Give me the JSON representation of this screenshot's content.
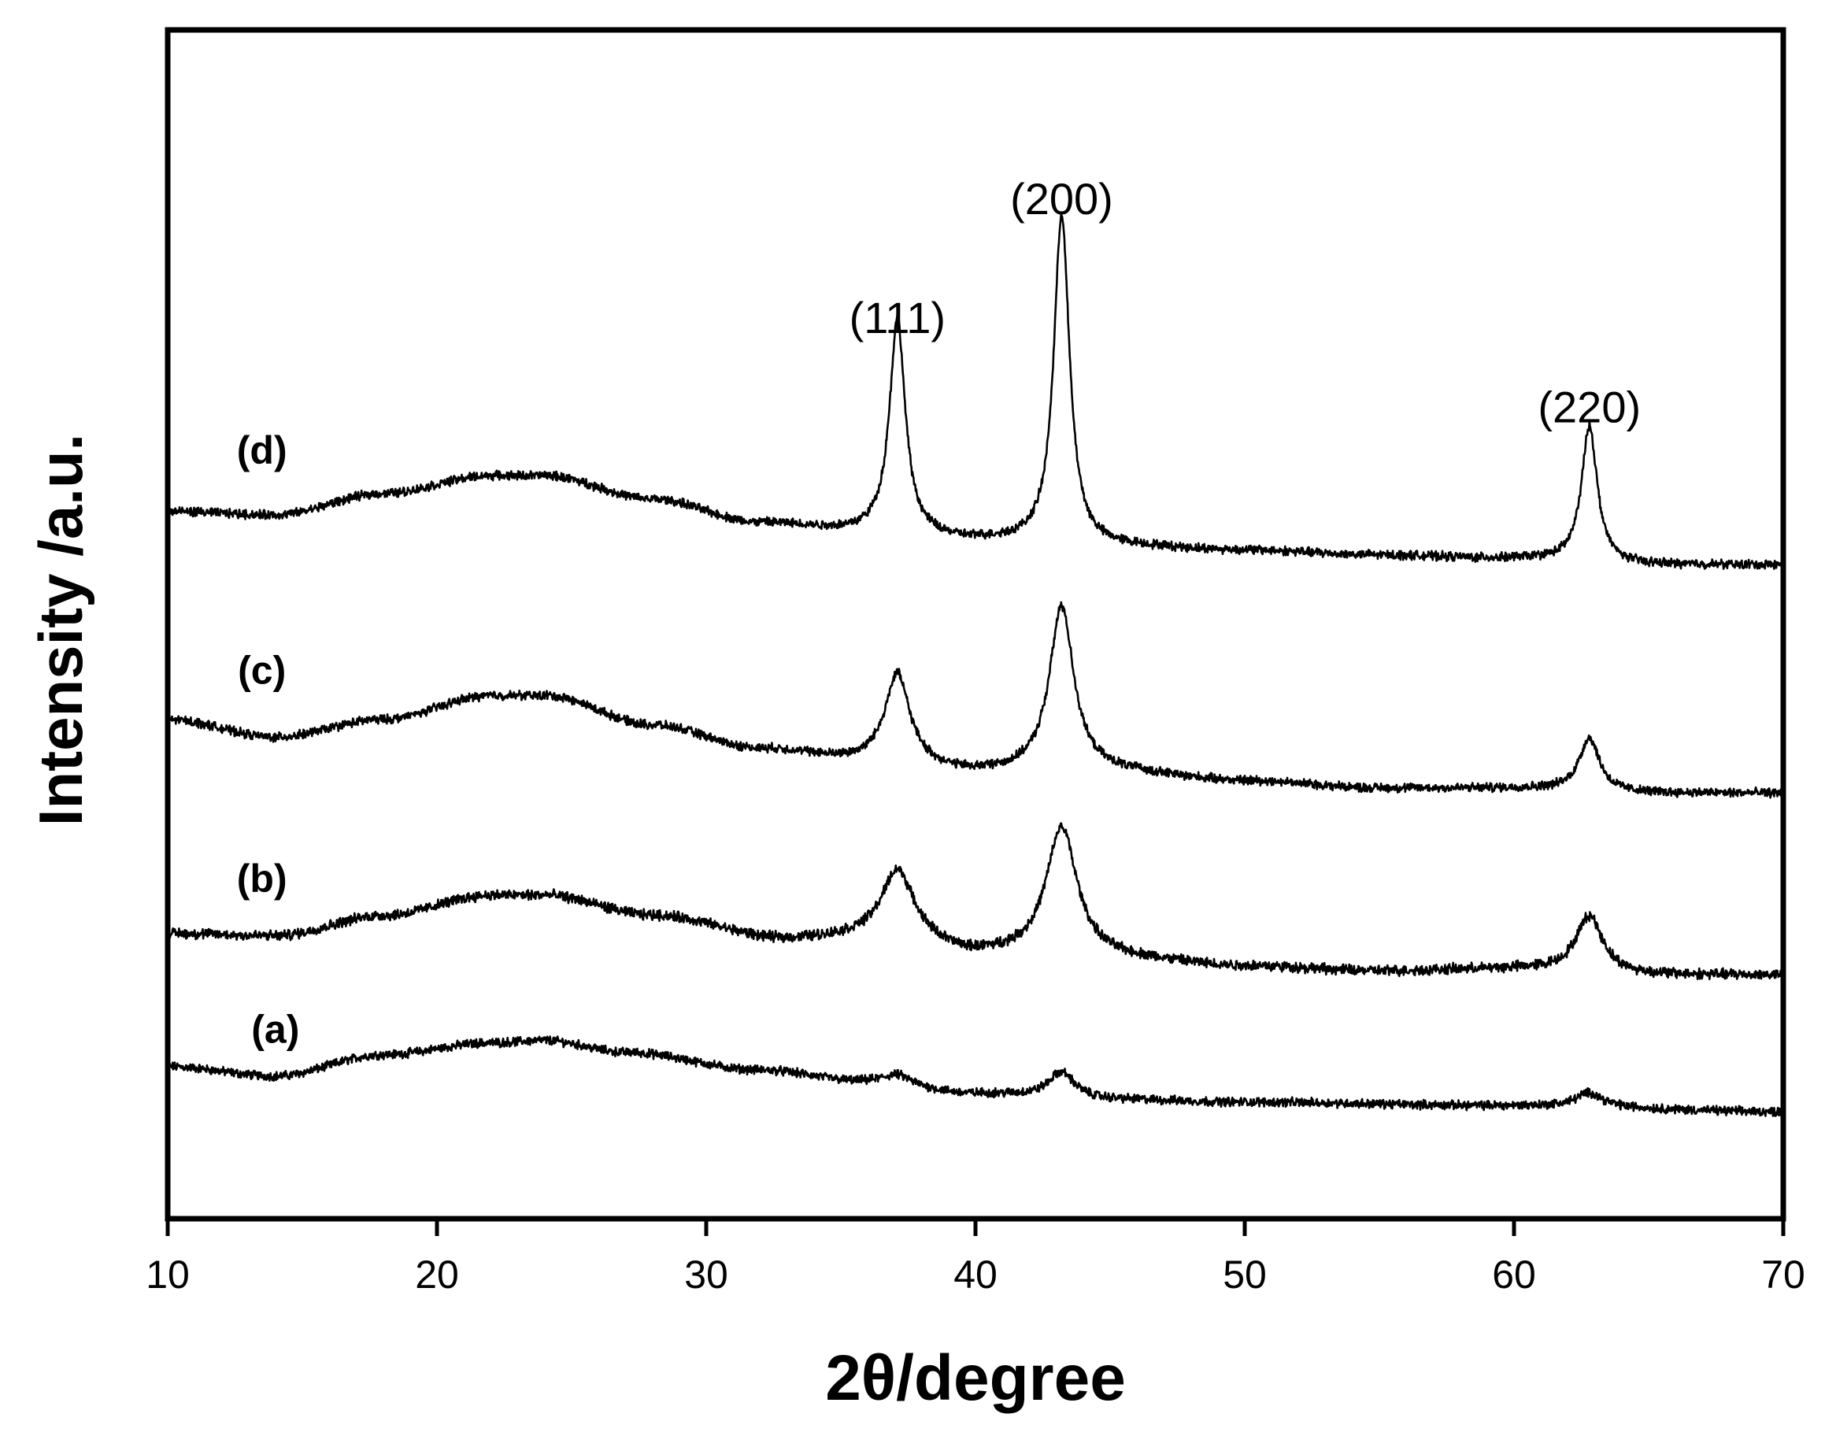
{
  "chart_data": {
    "type": "line",
    "title": "",
    "xlabel": "2θ/degree",
    "ylabel": "Intensity /a.u.",
    "xlim": [
      10,
      70
    ],
    "ylim": [
      0,
      10
    ],
    "x_ticks": [
      10,
      20,
      30,
      40,
      50,
      60,
      70
    ],
    "y_ticks": [],
    "grid": false,
    "legend": "none",
    "line_color": "#000000",
    "peak_centers": [
      37.1,
      43.2,
      62.8
    ],
    "annotations": [
      {
        "text": "(111)",
        "x": 37.1,
        "y": 7.45
      },
      {
        "text": "(200)",
        "x": 43.2,
        "y": 8.45
      },
      {
        "text": "(220)",
        "x": 62.8,
        "y": 6.7
      }
    ],
    "series": [
      {
        "name": "(a)",
        "label_at": {
          "x": 14.0,
          "y": 1.48
        },
        "baseline": [
          [
            10,
            1.28
          ],
          [
            14,
            1.2
          ],
          [
            18,
            1.38
          ],
          [
            22,
            1.48
          ],
          [
            24,
            1.5
          ],
          [
            27,
            1.4
          ],
          [
            32,
            1.25
          ],
          [
            36,
            1.15
          ],
          [
            40,
            1.05
          ],
          [
            45,
            1.0
          ],
          [
            50,
            0.98
          ],
          [
            60,
            0.95
          ],
          [
            70,
            0.9
          ]
        ],
        "peaks": [
          {
            "center": 37.1,
            "height": 0.08,
            "width": 0.6
          },
          {
            "center": 43.2,
            "height": 0.22,
            "width": 0.6
          },
          {
            "center": 62.8,
            "height": 0.12,
            "width": 0.6
          }
        ],
        "noise": 0.03
      },
      {
        "name": "(b)",
        "label_at": {
          "x": 13.5,
          "y": 2.75
        },
        "baseline": [
          [
            10,
            2.4
          ],
          [
            14,
            2.38
          ],
          [
            18,
            2.55
          ],
          [
            22,
            2.72
          ],
          [
            24,
            2.72
          ],
          [
            28,
            2.55
          ],
          [
            33,
            2.35
          ],
          [
            37,
            2.38
          ],
          [
            40,
            2.22
          ],
          [
            45,
            2.18
          ],
          [
            50,
            2.12
          ],
          [
            55,
            2.08
          ],
          [
            60,
            2.1
          ],
          [
            65,
            2.05
          ],
          [
            70,
            2.05
          ]
        ],
        "peaks": [
          {
            "center": 37.1,
            "height": 0.55,
            "width": 0.7
          },
          {
            "center": 43.2,
            "height": 1.1,
            "width": 0.7
          },
          {
            "center": 62.8,
            "height": 0.48,
            "width": 0.6
          }
        ],
        "noise": 0.035
      },
      {
        "name": "(c)",
        "label_at": {
          "x": 13.5,
          "y": 4.5
        },
        "baseline": [
          [
            10,
            4.2
          ],
          [
            14,
            4.05
          ],
          [
            18,
            4.2
          ],
          [
            22,
            4.4
          ],
          [
            24,
            4.4
          ],
          [
            28,
            4.15
          ],
          [
            32,
            3.95
          ],
          [
            36,
            3.85
          ],
          [
            40,
            3.75
          ],
          [
            45,
            3.75
          ],
          [
            50,
            3.68
          ],
          [
            55,
            3.62
          ],
          [
            60,
            3.62
          ],
          [
            65,
            3.58
          ],
          [
            70,
            3.58
          ]
        ],
        "peaks": [
          {
            "center": 37.1,
            "height": 0.75,
            "width": 0.55
          },
          {
            "center": 43.2,
            "height": 1.4,
            "width": 0.55
          },
          {
            "center": 62.8,
            "height": 0.45,
            "width": 0.45
          }
        ],
        "noise": 0.03
      },
      {
        "name": "(d)",
        "label_at": {
          "x": 13.5,
          "y": 6.35
        },
        "baseline": [
          [
            10,
            5.95
          ],
          [
            14,
            5.92
          ],
          [
            18,
            6.1
          ],
          [
            22,
            6.25
          ],
          [
            24,
            6.25
          ],
          [
            28,
            6.05
          ],
          [
            32,
            5.85
          ],
          [
            36,
            5.78
          ],
          [
            40,
            5.7
          ],
          [
            45,
            5.65
          ],
          [
            50,
            5.62
          ],
          [
            55,
            5.58
          ],
          [
            60,
            5.55
          ],
          [
            65,
            5.5
          ],
          [
            70,
            5.5
          ]
        ],
        "peaks": [
          {
            "center": 37.1,
            "height": 1.8,
            "width": 0.35
          },
          {
            "center": 43.2,
            "height": 2.78,
            "width": 0.35
          },
          {
            "center": 62.8,
            "height": 1.15,
            "width": 0.35
          }
        ],
        "noise": 0.03
      }
    ]
  }
}
